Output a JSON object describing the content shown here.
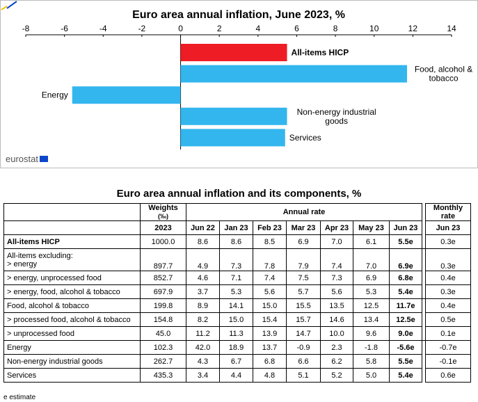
{
  "chart_data": {
    "type": "bar",
    "orientation": "horizontal",
    "title": "Euro area annual inflation, June 2023, %",
    "xlim": [
      -8,
      14
    ],
    "xticks": [
      -8,
      -6,
      -4,
      -2,
      0,
      2,
      4,
      6,
      8,
      10,
      12,
      14
    ],
    "grid": false,
    "categories": [
      "All-items HICP",
      "Food, alcohol & tobacco",
      "Energy",
      "Non-energy industrial goods",
      "Services"
    ],
    "values": [
      5.5,
      11.7,
      -5.6,
      5.5,
      5.4
    ],
    "colors": [
      "#ee1c25",
      "#33b6ee",
      "#33b6ee",
      "#33b6ee",
      "#33b6ee"
    ],
    "label_lines": [
      [
        "All-items HICP"
      ],
      [
        "Food, alcohol &",
        "tobacco"
      ],
      [
        "Energy"
      ],
      [
        "Non-energy industrial",
        "goods"
      ],
      [
        "Services"
      ]
    ],
    "bold_categories": [
      "All-items HICP"
    ]
  },
  "logo_text": "eurostat",
  "table": {
    "title": "Euro area annual inflation and its components, %",
    "weights_header": [
      "Weights",
      "(‰)"
    ],
    "annual_header": "Annual rate",
    "monthly_header": [
      "Monthly",
      "rate"
    ],
    "weights_year": "2023",
    "months": [
      "Jun 22",
      "Jan 23",
      "Feb 23",
      "Mar 23",
      "Apr 23",
      "May 23",
      "Jun 23"
    ],
    "monthly_month": "Jun 23",
    "rows": [
      {
        "label": "All-items HICP",
        "bold": true,
        "weight": "1000.0",
        "annual": [
          "8.6",
          "8.6",
          "8.5",
          "6.9",
          "7.0",
          "6.1",
          "5.5e"
        ],
        "monthly": "0.3e"
      },
      {
        "label": "All-items excluding:",
        "label2": "> energy",
        "weight": "897.7",
        "annual": [
          "4.9",
          "7.3",
          "7.8",
          "7.9",
          "7.4",
          "7.0",
          "6.9e"
        ],
        "monthly": "0.3e"
      },
      {
        "label": "> energy, unprocessed food",
        "weight": "852.7",
        "annual": [
          "4.6",
          "7.1",
          "7.4",
          "7.5",
          "7.3",
          "6.9",
          "6.8e"
        ],
        "monthly": "0.4e"
      },
      {
        "label": "> energy, food, alcohol & tobacco",
        "weight": "697.9",
        "annual": [
          "3.7",
          "5.3",
          "5.6",
          "5.7",
          "5.6",
          "5.3",
          "5.4e"
        ],
        "monthly": "0.3e"
      },
      {
        "label": "Food, alcohol & tobacco",
        "weight": "199.8",
        "annual": [
          "8.9",
          "14.1",
          "15.0",
          "15.5",
          "13.5",
          "12.5",
          "11.7e"
        ],
        "monthly": "0.4e"
      },
      {
        "label": "> processed food, alcohol & tobacco",
        "weight": "154.8",
        "annual": [
          "8.2",
          "15.0",
          "15.4",
          "15.7",
          "14.6",
          "13.4",
          "12.5e"
        ],
        "monthly": "0.5e"
      },
      {
        "label": "> unprocessed food",
        "weight": "45.0",
        "annual": [
          "11.2",
          "11.3",
          "13.9",
          "14.7",
          "10.0",
          "9.6",
          "9.0e"
        ],
        "monthly": "0.1e"
      },
      {
        "label": "Energy",
        "weight": "102.3",
        "annual": [
          "42.0",
          "18.9",
          "13.7",
          "-0.9",
          "2.3",
          "-1.8",
          "-5.6e"
        ],
        "monthly": "-0.7e"
      },
      {
        "label": "Non-energy industrial goods",
        "weight": "262.7",
        "annual": [
          "4.3",
          "6.7",
          "6.8",
          "6.6",
          "6.2",
          "5.8",
          "5.5e"
        ],
        "monthly": "-0.1e"
      },
      {
        "label": "Services",
        "weight": "435.3",
        "annual": [
          "3.4",
          "4.4",
          "4.8",
          "5.1",
          "5.2",
          "5.0",
          "5.4e"
        ],
        "monthly": "0.6e"
      }
    ]
  },
  "footnote": "e estimate"
}
